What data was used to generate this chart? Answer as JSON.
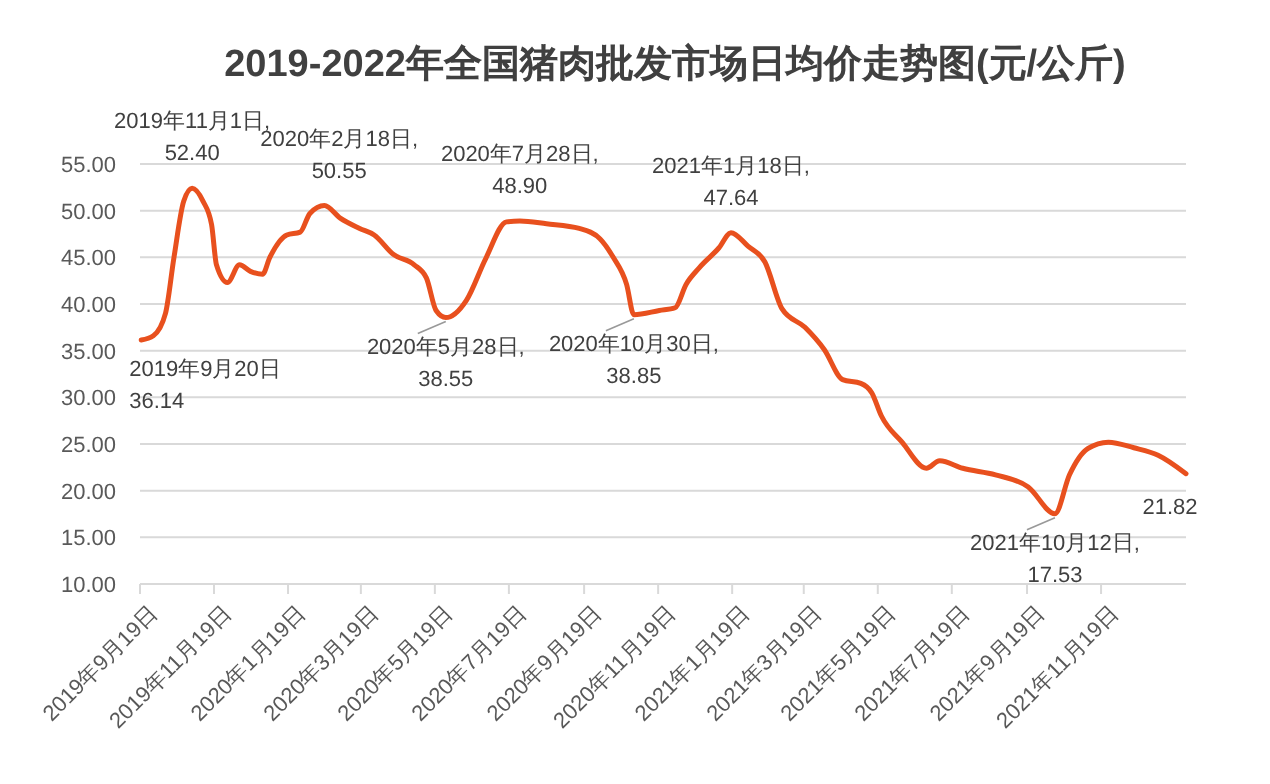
{
  "chart_data": {
    "type": "line",
    "title": "2019-2022年全国猪肉批发市场日均价走势图(元/公斤)",
    "series": [
      {
        "color": "#e8501e",
        "x": [
          "2019-09-20",
          "2019-09-30",
          "2019-10-10",
          "2019-10-17",
          "2019-10-25",
          "2019-11-01",
          "2019-11-10",
          "2019-11-17",
          "2019-11-21",
          "2019-11-30",
          "2019-12-10",
          "2019-12-19",
          "2019-12-29",
          "2020-01-04",
          "2020-01-18",
          "2020-01-29",
          "2020-02-06",
          "2020-02-18",
          "2020-03-02",
          "2020-03-18",
          "2020-03-30",
          "2020-04-15",
          "2020-05-02",
          "2020-05-12",
          "2020-05-20",
          "2020-05-28",
          "2020-06-14",
          "2020-06-30",
          "2020-07-17",
          "2020-07-28",
          "2020-08-19",
          "2020-09-15",
          "2020-10-02",
          "2020-10-13",
          "2020-10-24",
          "2020-10-30",
          "2020-11-20",
          "2020-12-03",
          "2020-12-12",
          "2020-12-23",
          "2021-01-08",
          "2021-01-18",
          "2021-02-01",
          "2021-02-15",
          "2021-03-01",
          "2021-03-20",
          "2021-04-05",
          "2021-04-20",
          "2021-05-05",
          "2021-05-14",
          "2021-05-22",
          "2021-06-08",
          "2021-06-28",
          "2021-07-09",
          "2021-07-28",
          "2021-08-24",
          "2021-09-20",
          "2021-10-12",
          "2021-10-24",
          "2021-11-08",
          "2021-11-25",
          "2021-12-16",
          "2022-01-05",
          "2022-01-28"
        ],
        "values": [
          36.14,
          36.6,
          39,
          45,
          51,
          52.4,
          51,
          48.5,
          44.2,
          42.3,
          44.2,
          43.5,
          43.2,
          45,
          47.4,
          47.7,
          49.7,
          50.55,
          49.2,
          48.1,
          47.4,
          45.3,
          44.2,
          42.8,
          39.3,
          38.55,
          40.4,
          44.9,
          48.8,
          48.9,
          48.6,
          48.1,
          47,
          45,
          42.1,
          38.85,
          39.3,
          39.6,
          42.1,
          43.9,
          46,
          47.64,
          46.2,
          44.5,
          39.5,
          37.5,
          35.1,
          31.9,
          31.5,
          30.5,
          28,
          25.2,
          22.4,
          23.2,
          22.4,
          21.7,
          20.4,
          17.53,
          21.7,
          24.5,
          25.2,
          24.6,
          23.8,
          21.82
        ]
      }
    ],
    "xlim": [
      "2019-09-19",
      "2022-01-28"
    ],
    "xticks": [
      {
        "value": "2019-09-19",
        "label": "2019年9月19日"
      },
      {
        "value": "2019-11-19",
        "label": "2019年11月19日"
      },
      {
        "value": "2020-01-19",
        "label": "2020年1月19日"
      },
      {
        "value": "2020-03-19",
        "label": "2020年3月19日"
      },
      {
        "value": "2020-05-19",
        "label": "2020年5月19日"
      },
      {
        "value": "2020-07-19",
        "label": "2020年7月19日"
      },
      {
        "value": "2020-09-19",
        "label": "2020年9月19日"
      },
      {
        "value": "2020-11-19",
        "label": "2020年11月19日"
      },
      {
        "value": "2021-01-19",
        "label": "2021年1月19日"
      },
      {
        "value": "2021-03-19",
        "label": "2021年3月19日"
      },
      {
        "value": "2021-05-19",
        "label": "2021年5月19日"
      },
      {
        "value": "2021-07-19",
        "label": "2021年7月19日"
      },
      {
        "value": "2021-09-19",
        "label": "2021年9月19日"
      },
      {
        "value": "2021-11-19",
        "label": "2021年11月19日"
      }
    ],
    "ylim": [
      10,
      55
    ],
    "yticks": [
      {
        "value": 10,
        "label": "10.00"
      },
      {
        "value": 15,
        "label": "15.00"
      },
      {
        "value": 20,
        "label": "20.00"
      },
      {
        "value": 25,
        "label": "25.00"
      },
      {
        "value": 30,
        "label": "30.00"
      },
      {
        "value": 35,
        "label": "35.00"
      },
      {
        "value": 40,
        "label": "40.00"
      },
      {
        "value": 45,
        "label": "45.00"
      },
      {
        "value": 50,
        "label": "50.00"
      },
      {
        "value": 55,
        "label": "55.00"
      }
    ],
    "grid": "y",
    "marker": "none",
    "line_style": "solid",
    "annotations": [
      {
        "text": "2019年9月20日\n36.14",
        "x": "2019-09-20",
        "y": 36.14
      },
      {
        "text": "2019年11月1日,\n52.40",
        "x": "2019-11-01",
        "y": 52.4
      },
      {
        "text": "2020年2月18日,\n50.55",
        "x": "2020-02-18",
        "y": 50.55
      },
      {
        "text": "2020年5月28日,\n38.55",
        "x": "2020-05-28",
        "y": 38.55
      },
      {
        "text": "2020年7月28日,\n48.90",
        "x": "2020-07-28",
        "y": 48.9
      },
      {
        "text": "2020年10月30日,\n38.85",
        "x": "2020-10-30",
        "y": 38.85
      },
      {
        "text": "2021年1月18日,\n47.64",
        "x": "2021-01-18",
        "y": 47.64
      },
      {
        "text": "2021年10月12日,\n17.53",
        "x": "2021-10-12",
        "y": 17.53
      },
      {
        "text": "21.82",
        "x": "2022-01-28",
        "y": 21.82
      }
    ]
  }
}
